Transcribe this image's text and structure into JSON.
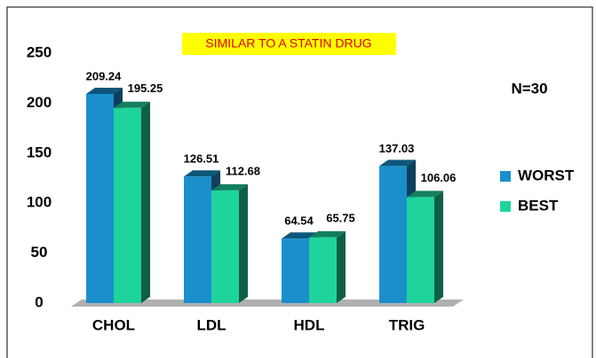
{
  "chart_data": {
    "type": "bar3d",
    "title": "SIMILAR TO A STATIN DRUG",
    "annotation": "N=30",
    "categories": [
      "CHOL",
      "LDL",
      "HDL",
      "TRIG"
    ],
    "series": [
      {
        "name": "WORST",
        "color": "#1a8fcc",
        "values": [
          209.24,
          126.51,
          64.54,
          137.03
        ]
      },
      {
        "name": "BEST",
        "color": "#1fd49c",
        "values": [
          195.25,
          112.68,
          65.75,
          106.06
        ]
      }
    ],
    "ylim": [
      0,
      250
    ],
    "yticks": [
      0,
      50,
      100,
      150,
      200,
      250
    ],
    "legend": "right"
  }
}
